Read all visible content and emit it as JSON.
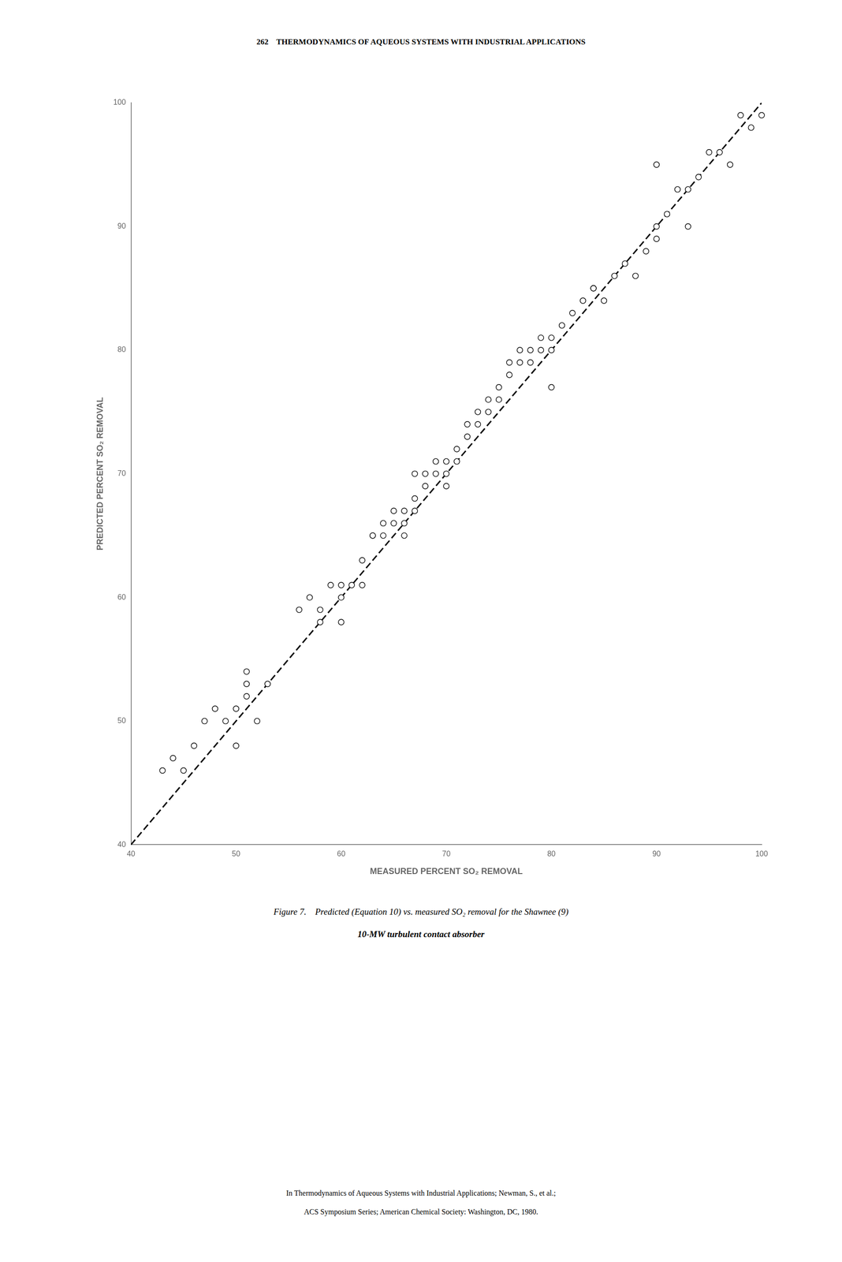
{
  "chart_data": {
    "type": "scatter",
    "title": "262    THERMODYNAMICS OF AQUEOUS SYSTEMS WITH INDUSTRIAL APPLICATIONS",
    "annotations": [
      "Figure 7.    Predicted (Equation 10) vs. measured SO₂ removal for the Shawnee (9)",
      "10-MW turbulent contact absorber",
      "In Thermodynamics of Aqueous Systems with Industrial Applications; Newman, S., et al.;",
      "ACS Symposium Series; American Chemical Society: Washington, DC, 1980."
    ],
    "xlabel": "MEASURED PERCENT SO₂ REMOVAL",
    "ylabel": "PREDICTED PERCENT SO₂ REMOVAL",
    "xlim": [
      40,
      100
    ],
    "ylim": [
      40,
      100
    ],
    "xticks": [
      40,
      50,
      60,
      70,
      80,
      90,
      100
    ],
    "yticks": [
      40,
      50,
      60,
      70,
      80,
      90,
      100
    ],
    "grid": false,
    "series": [
      {
        "type": "scatter",
        "marker": "open_circle",
        "color": "black",
        "x": [
          43,
          44,
          45,
          46,
          47,
          48,
          49,
          50,
          51,
          51,
          52,
          53,
          50,
          51,
          56,
          57,
          58,
          59,
          60,
          60,
          61,
          62,
          62,
          63,
          63,
          64,
          64,
          65,
          60,
          58,
          67,
          65,
          66,
          66,
          67,
          67,
          68,
          68,
          69,
          69,
          70,
          70,
          71,
          71,
          72,
          72,
          73,
          73,
          74,
          74,
          75,
          66,
          70,
          75,
          76,
          76,
          77,
          77,
          78,
          78,
          79,
          79,
          80,
          80,
          81,
          82,
          83,
          84,
          85,
          84,
          80,
          86,
          87,
          88,
          89,
          90,
          90,
          91,
          92,
          93,
          94,
          95,
          96,
          97,
          98,
          99,
          100,
          90,
          93
        ],
        "values": [
          46,
          47,
          46,
          48,
          50,
          51,
          50,
          51,
          53,
          54,
          50,
          53,
          48,
          52,
          59,
          60,
          59,
          61,
          60,
          61,
          61,
          61,
          63,
          65,
          65,
          66,
          65,
          66,
          58,
          58,
          70,
          67,
          67,
          66,
          68,
          67,
          69,
          70,
          70,
          71,
          70,
          71,
          72,
          71,
          73,
          74,
          74,
          75,
          75,
          76,
          76,
          65,
          69,
          77,
          78,
          79,
          79,
          80,
          80,
          79,
          80,
          81,
          81,
          80,
          82,
          83,
          84,
          85,
          84,
          85,
          77,
          86,
          87,
          86,
          88,
          90,
          89,
          91,
          93,
          93,
          94,
          96,
          96,
          95,
          99,
          98,
          99,
          95,
          90
        ]
      },
      {
        "type": "line",
        "line_style": "dashed",
        "color": "black",
        "x": [
          40,
          100
        ],
        "values": [
          40,
          100
        ]
      }
    ]
  }
}
